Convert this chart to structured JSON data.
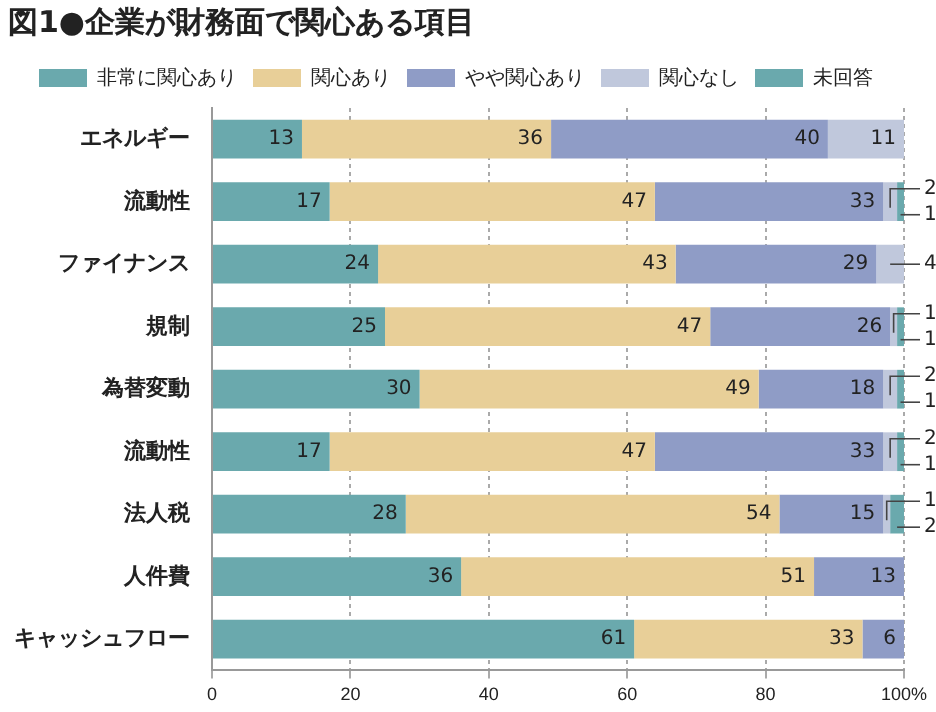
{
  "chart_data": {
    "type": "bar",
    "orientation": "horizontal",
    "stacked": true,
    "title": "図1●企業が財務面で関心ある項目",
    "categories": [
      "エネルギー",
      "流動性",
      "ファイナンス",
      "規制",
      "為替変動",
      "流動性",
      "法人税",
      "人件費",
      "キャッシュフロー"
    ],
    "series": [
      {
        "name": "非常に関心あり",
        "color": "#6aa9ad",
        "values": [
          13,
          17,
          24,
          25,
          30,
          17,
          28,
          36,
          61
        ]
      },
      {
        "name": "関心あり",
        "color": "#e8cf98",
        "values": [
          36,
          47,
          43,
          47,
          49,
          47,
          54,
          51,
          33
        ]
      },
      {
        "name": "やや関心あり",
        "color": "#8f9cc6",
        "values": [
          40,
          33,
          29,
          26,
          18,
          33,
          15,
          13,
          6
        ]
      },
      {
        "name": "関心なし",
        "color": "#c0c8dc",
        "values": [
          11,
          2,
          4,
          1,
          2,
          2,
          1,
          null,
          null
        ]
      },
      {
        "name": "未回答",
        "color": "#6aa9ad",
        "values": [
          null,
          1,
          null,
          1,
          1,
          1,
          2,
          null,
          null
        ]
      }
    ],
    "xlim": [
      0,
      100
    ],
    "xticks": [
      0,
      20,
      40,
      60,
      80,
      {
        "value": 100,
        "label": "100%"
      }
    ],
    "grid": "x",
    "legend": "top",
    "data_labels": true
  }
}
